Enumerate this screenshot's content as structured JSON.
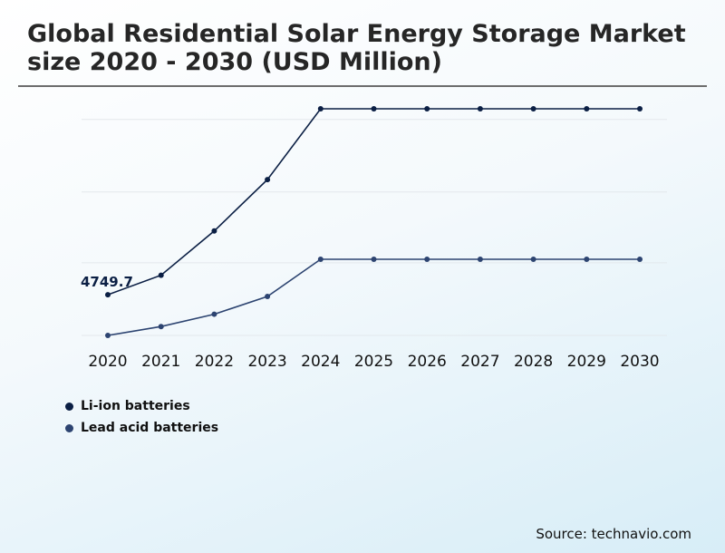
{
  "chart_data": {
    "type": "line",
    "title": "Global Residential Solar Energy Storage Market size 2020 - 2030 (USD Million)",
    "categories": [
      "2020",
      "2021",
      "2022",
      "2023",
      "2024",
      "2025",
      "2026",
      "2027",
      "2028",
      "2029",
      "2030"
    ],
    "series": [
      {
        "name": "Li-ion batteries",
        "color": "#0b1f44",
        "values": [
          4749.7,
          5300,
          6550,
          8000,
          10000,
          10000,
          10000,
          10000,
          10000,
          10000,
          10000
        ]
      },
      {
        "name": "Lead acid batteries",
        "color": "#2d4471",
        "values": [
          3600,
          3850,
          4200,
          4700,
          5750,
          5750,
          5750,
          5750,
          5750,
          5750,
          5750
        ]
      }
    ],
    "annotation": {
      "series": 0,
      "index": 0,
      "label": "4749.7"
    },
    "ylim": [
      3600,
      10000
    ],
    "gridlines": [
      3600,
      5650,
      7650,
      9700
    ],
    "xlabel": "",
    "ylabel": "",
    "legend": "bottom-left"
  },
  "footer": {
    "source": "Source: technavio.com"
  }
}
